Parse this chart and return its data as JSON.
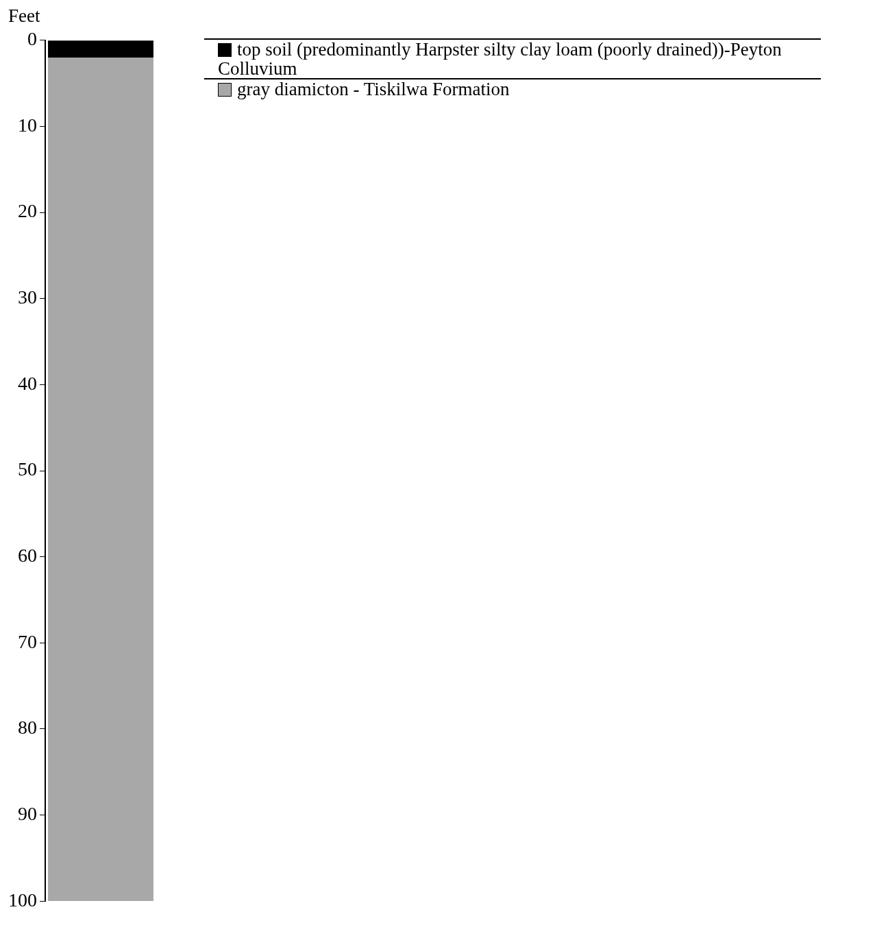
{
  "chart_data": {
    "type": "bar",
    "ylabel": "Feet",
    "categories": [
      null
    ],
    "ylim": [
      100,
      0
    ],
    "yticks": [
      0,
      10,
      20,
      30,
      40,
      50,
      60,
      70,
      80,
      90,
      100
    ],
    "legend": "right",
    "series": [
      {
        "name": "top soil (predominantly Harpster silty clay loam (poorly drained))-Peyton Colluvium",
        "color": "#000000",
        "base": [
          0
        ],
        "values": [
          2
        ]
      },
      {
        "name": "gray diamicton - Tiskilwa Formation",
        "color": "#a8a8a8",
        "base": [
          2
        ],
        "values": [
          98
        ]
      }
    ]
  }
}
